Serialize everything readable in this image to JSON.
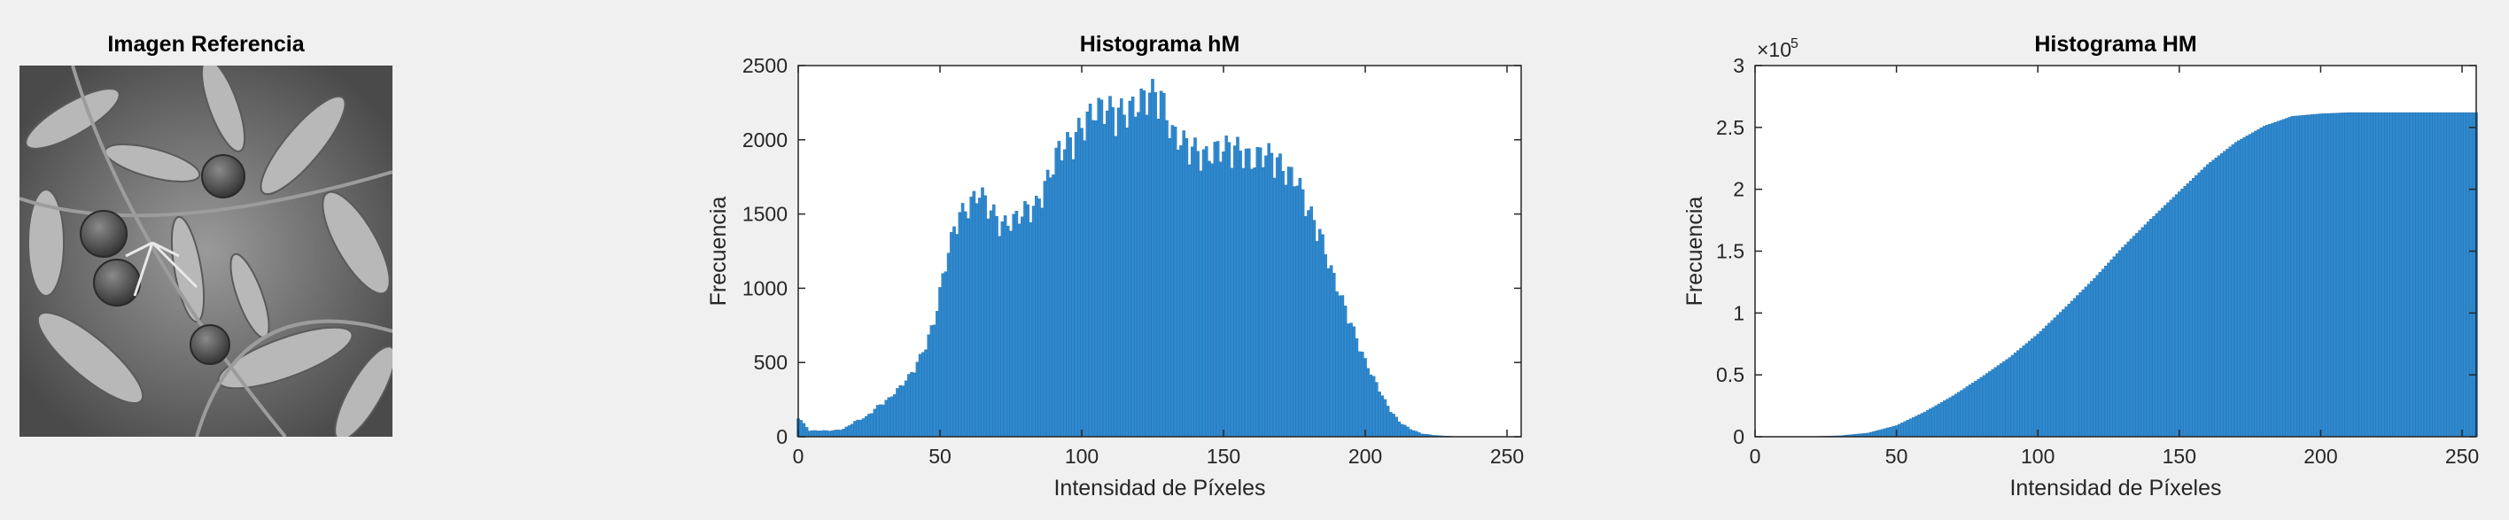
{
  "image_panel": {
    "title": "Imagen Referencia"
  },
  "chart_data": [
    {
      "type": "bar",
      "title": "Histograma hM",
      "xlabel": "Intensidad de Píxeles",
      "ylabel": "Frecuencia",
      "xlim": [
        0,
        255
      ],
      "ylim": [
        0,
        2500
      ],
      "xticks": [
        0,
        50,
        100,
        150,
        200,
        250
      ],
      "yticks": [
        0,
        500,
        1000,
        1500,
        2000,
        2500
      ],
      "grid": false,
      "bar_color": "#2f89cf",
      "x": [
        0,
        4,
        8,
        12,
        16,
        20,
        24,
        28,
        32,
        36,
        40,
        44,
        48,
        52,
        56,
        60,
        64,
        68,
        72,
        76,
        80,
        84,
        88,
        92,
        96,
        100,
        104,
        108,
        112,
        116,
        120,
        124,
        128,
        132,
        136,
        140,
        144,
        148,
        152,
        156,
        160,
        164,
        168,
        172,
        176,
        180,
        184,
        188,
        192,
        196,
        200,
        204,
        208,
        212,
        216,
        220,
        224,
        228,
        232,
        236,
        240,
        244,
        248,
        252
      ],
      "values": [
        130,
        40,
        40,
        40,
        50,
        100,
        130,
        200,
        250,
        330,
        420,
        560,
        760,
        1150,
        1450,
        1520,
        1620,
        1500,
        1400,
        1430,
        1500,
        1530,
        1700,
        1900,
        1950,
        2050,
        2150,
        2180,
        2150,
        2150,
        2200,
        2280,
        2250,
        2000,
        1950,
        1900,
        1850,
        1900,
        1920,
        1900,
        1820,
        1880,
        1850,
        1750,
        1700,
        1500,
        1350,
        1100,
        900,
        700,
        500,
        350,
        200,
        100,
        50,
        20,
        10,
        5,
        2,
        0,
        0,
        0,
        0,
        0
      ]
    },
    {
      "type": "bar",
      "title": "Histograma HM",
      "xlabel": "Intensidad de Píxeles",
      "ylabel": "Frecuencia",
      "exponent_label": "×10",
      "exponent_power": "5",
      "xlim": [
        0,
        255
      ],
      "ylim": [
        0,
        3
      ],
      "xticks": [
        0,
        50,
        100,
        150,
        200,
        250
      ],
      "yticks": [
        0,
        0.5,
        1,
        1.5,
        2,
        2.5,
        3
      ],
      "grid": false,
      "bar_color": "#2f89cf",
      "x": [
        0,
        10,
        20,
        30,
        40,
        50,
        60,
        70,
        80,
        90,
        100,
        110,
        120,
        130,
        140,
        150,
        160,
        170,
        180,
        190,
        200,
        210,
        220,
        230,
        240,
        250,
        255
      ],
      "values": [
        0,
        0,
        0.002,
        0.008,
        0.03,
        0.09,
        0.2,
        0.33,
        0.48,
        0.64,
        0.83,
        1.05,
        1.28,
        1.53,
        1.76,
        1.98,
        2.2,
        2.38,
        2.51,
        2.59,
        2.61,
        2.62,
        2.62,
        2.62,
        2.62,
        2.62,
        2.62
      ]
    }
  ]
}
